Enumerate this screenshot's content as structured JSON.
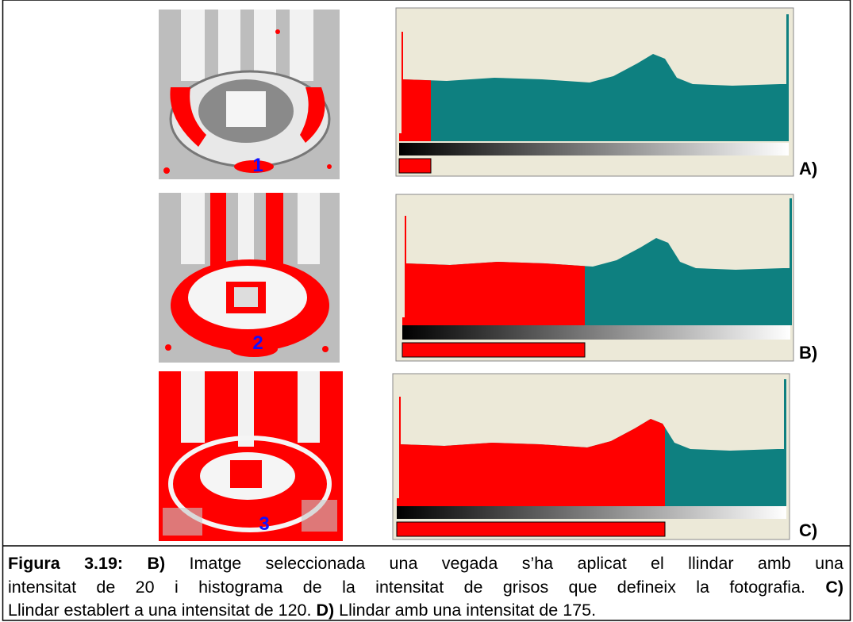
{
  "panels": [
    {
      "image_number": "1",
      "label": "A)"
    },
    {
      "image_number": "2",
      "label": "B)"
    },
    {
      "image_number": "3",
      "label": "C)"
    }
  ],
  "caption": {
    "lines": [
      [
        "Figura 3.19: B)",
        " Imatge seleccionada una vegada s’ha aplicat el llindar amb una"
      ],
      [
        "intensitat de 20 i histograma de la intensitat de grisos que defineix la fotografia. ",
        "C)"
      ],
      [
        "Llindar establert a una intensitat de 120. ",
        "D)",
        " Llindar amb una intensitat de 175."
      ]
    ]
  }
}
